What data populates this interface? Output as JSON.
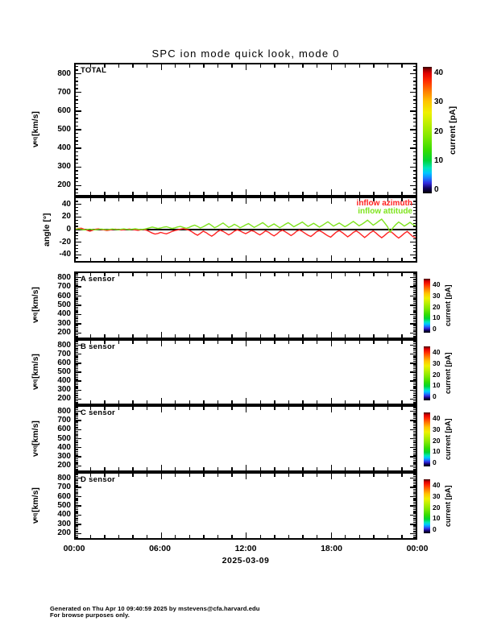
{
  "title": "SPC ion mode quick look, mode 0",
  "x_axis": {
    "tick_labels": [
      "00:00",
      "06:00",
      "12:00",
      "18:00",
      "00:00"
    ],
    "date_label": "2025-03-09",
    "hours_start": 0,
    "hours_end": 24,
    "major_step_h": 6,
    "minor_step_h": 1
  },
  "velocity_axis": {
    "label_prefix": "v",
    "label_sub": "eq",
    "label_suffix": " [km/s]",
    "ticks": [
      200,
      300,
      400,
      500,
      600,
      700,
      800
    ],
    "range": [
      150,
      850
    ],
    "minor_step": 20
  },
  "angle_axis": {
    "label": "angle [°]",
    "ticks": [
      -40,
      -20,
      0,
      20,
      40
    ],
    "range": [
      -50,
      50
    ],
    "minor_step": 5
  },
  "colorbar": {
    "label": "current [pA]",
    "ticks": [
      0,
      10,
      20,
      30,
      40
    ],
    "max": 40,
    "stops": [
      [
        0,
        "#000000"
      ],
      [
        0.04,
        "#10005c"
      ],
      [
        0.08,
        "#3128dd"
      ],
      [
        0.12,
        "#1b7bff"
      ],
      [
        0.16,
        "#00c6ff"
      ],
      [
        0.2,
        "#00e6bb"
      ],
      [
        0.26,
        "#00d435"
      ],
      [
        0.34,
        "#35dc00"
      ],
      [
        0.45,
        "#82e800"
      ],
      [
        0.56,
        "#c2ef00"
      ],
      [
        0.64,
        "#f0f000"
      ],
      [
        0.73,
        "#ffc200"
      ],
      [
        0.81,
        "#ff7a00"
      ],
      [
        0.89,
        "#ff2a00"
      ],
      [
        0.95,
        "#e00000"
      ],
      [
        0.98,
        "#8e0000"
      ],
      [
        1,
        "#2e0000"
      ]
    ]
  },
  "panels": [
    {
      "id": "total",
      "label": "TOTAL",
      "kind": "velocity",
      "has_colorbar": true
    },
    {
      "id": "angle",
      "label": "",
      "kind": "angle",
      "has_colorbar": false
    },
    {
      "id": "a",
      "label": "A sensor",
      "kind": "velocity",
      "has_colorbar": true
    },
    {
      "id": "b",
      "label": "B sensor",
      "kind": "velocity",
      "has_colorbar": true
    },
    {
      "id": "c",
      "label": "C sensor",
      "kind": "velocity",
      "has_colorbar": true
    },
    {
      "id": "d",
      "label": "D sensor",
      "kind": "velocity",
      "has_colorbar": true
    }
  ],
  "legend": {
    "items": [
      {
        "label": "inflow azimuth",
        "color": "#ff2222"
      },
      {
        "label": "inflow attitude",
        "color": "#7fe41e"
      }
    ]
  },
  "footer": {
    "line1": "Generated on Thu Apr 10 09:40:59 2025 by mstevens@cfa.harvard.edu",
    "line2": "For browse purposes only."
  },
  "chart_data": {
    "type": "line",
    "title": "SPC ion mode quick look, mode 0",
    "xlabel": "2025-03-09",
    "ylabel": "angle [°]",
    "x_hours_start": 0,
    "x_hours_step": 0.2,
    "xlim_hours": [
      0,
      24
    ],
    "ylim": [
      -50,
      50
    ],
    "grid": false,
    "legend_position": "top-right",
    "series": [
      {
        "name": "inflow azimuth",
        "color": "#ff2222",
        "values": [
          0.8,
          1.8,
          2.2,
          0.5,
          -1.2,
          -2.5,
          -1.0,
          0.6,
          1.2,
          0.3,
          -0.6,
          -1.5,
          -0.8,
          0.2,
          0.8,
          0.1,
          -0.7,
          -0.3,
          0.4,
          0.9,
          0.2,
          -0.5,
          -1.1,
          -0.4,
          0.3,
          -1.0,
          -3.2,
          -5.5,
          -7.0,
          -6.2,
          -4.5,
          -5.8,
          -6.8,
          -5.0,
          -3.0,
          -1.5,
          -0.5,
          0.8,
          1.5,
          0.4,
          -1.0,
          -3.5,
          -6.5,
          -9.0,
          -6.0,
          -2.5,
          -4.8,
          -8.0,
          -10.5,
          -7.5,
          -3.5,
          -1.0,
          -2.8,
          -5.5,
          -8.5,
          -6.0,
          -2.5,
          -0.5,
          -2.0,
          -4.5,
          -6.5,
          -4.0,
          -1.5,
          -3.0,
          -6.0,
          -8.5,
          -5.5,
          -2.0,
          -4.0,
          -7.5,
          -10.0,
          -7.0,
          -3.0,
          -1.0,
          -3.5,
          -6.5,
          -9.5,
          -6.5,
          -2.5,
          -0.8,
          -3.0,
          -6.0,
          -9.0,
          -11.0,
          -7.5,
          -3.5,
          -1.5,
          -4.0,
          -7.0,
          -10.0,
          -12.0,
          -8.0,
          -4.0,
          -1.5,
          -4.5,
          -8.0,
          -11.5,
          -8.5,
          -4.5,
          -2.0,
          -5.0,
          -9.0,
          -12.5,
          -9.0,
          -5.0,
          -2.0,
          -5.5,
          -9.5,
          -13.0,
          -9.5,
          -5.5,
          -2.5,
          -6.0,
          -10.0,
          -13.5,
          -10.0,
          -6.0,
          -3.0,
          -7.0,
          -11.0,
          -13.0
        ]
      },
      {
        "name": "inflow attitude",
        "color": "#7fe41e",
        "values": [
          0.5,
          1.2,
          0.3,
          -0.5,
          0.2,
          0.8,
          0.1,
          -0.4,
          0.3,
          0.9,
          0.2,
          -0.3,
          0.4,
          1.0,
          0.3,
          -0.2,
          0.5,
          1.1,
          0.4,
          -0.1,
          0.6,
          1.3,
          0.5,
          0.0,
          0.7,
          1.5,
          2.8,
          4.0,
          3.0,
          1.8,
          2.5,
          3.8,
          4.5,
          3.2,
          1.8,
          2.8,
          4.2,
          5.0,
          3.5,
          2.0,
          3.5,
          5.5,
          7.0,
          5.0,
          2.5,
          4.5,
          7.0,
          9.5,
          6.5,
          3.0,
          5.0,
          8.0,
          10.5,
          7.0,
          3.5,
          5.5,
          8.5,
          6.0,
          3.0,
          5.0,
          7.5,
          9.5,
          6.5,
          3.5,
          6.0,
          8.5,
          11.0,
          7.5,
          4.0,
          6.5,
          9.0,
          6.0,
          3.0,
          5.5,
          8.5,
          11.0,
          8.0,
          4.5,
          7.0,
          9.5,
          12.0,
          8.5,
          5.0,
          7.5,
          10.0,
          7.0,
          4.0,
          6.5,
          9.5,
          12.5,
          9.0,
          5.5,
          8.0,
          10.5,
          7.5,
          4.5,
          7.0,
          10.0,
          13.0,
          9.5,
          6.0,
          8.5,
          11.5,
          15.0,
          11.0,
          7.0,
          10.0,
          13.5,
          16.5,
          11.0,
          5.0,
          -4.0,
          3.0,
          8.0,
          12.0,
          9.0,
          5.5,
          8.5,
          11.5,
          8.0,
          6.0
        ]
      }
    ]
  }
}
